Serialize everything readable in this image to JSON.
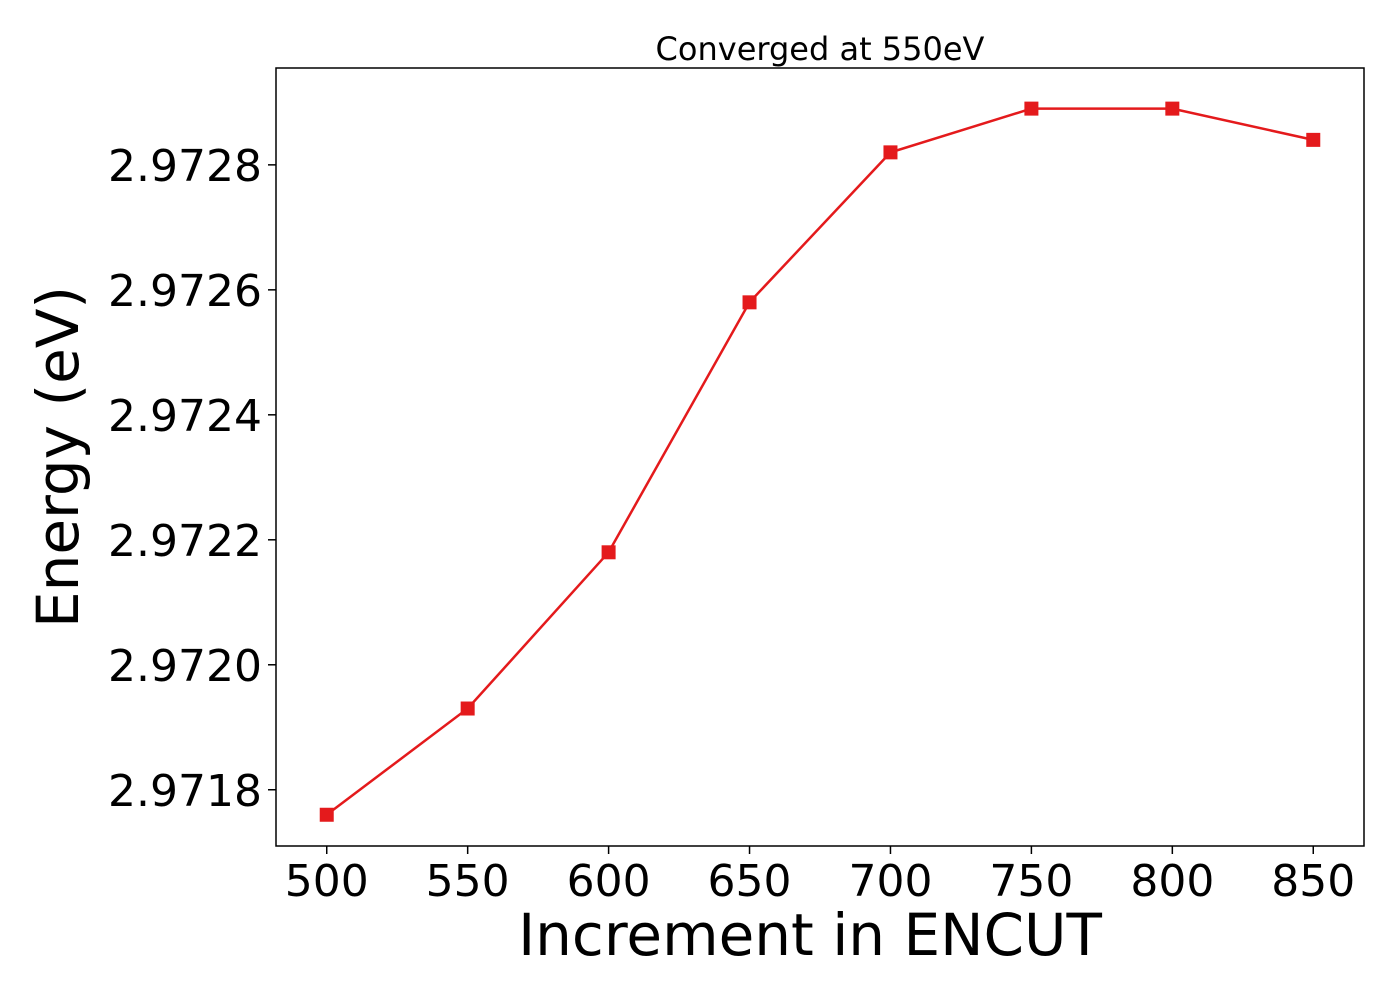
{
  "chart_data": {
    "type": "line",
    "title": "Converged at 550eV",
    "xlabel": "Increment in ENCUT",
    "ylabel": "Energy (eV)",
    "x": [
      500,
      550,
      600,
      650,
      700,
      750,
      800,
      850
    ],
    "series": [
      {
        "values": [
          2.97176,
          2.97193,
          2.97218,
          2.97258,
          2.97282,
          2.97289,
          2.97289,
          2.97284
        ],
        "color": "#e41a1c",
        "marker": "square"
      }
    ],
    "xlim": [
      482,
      868
    ],
    "ylim": [
      2.97171,
      2.972955
    ],
    "xticks": [
      500,
      550,
      600,
      650,
      700,
      750,
      800,
      850
    ],
    "xtick_labels": [
      "500",
      "550",
      "600",
      "650",
      "700",
      "750",
      "800",
      "850"
    ],
    "yticks": [
      2.9718,
      2.972,
      2.9722,
      2.9724,
      2.9726,
      2.9728
    ],
    "ytick_labels": [
      "2.9718",
      "2.9720",
      "2.9722",
      "2.9724",
      "2.9726",
      "2.9728"
    ],
    "grid": false,
    "legend": "none"
  }
}
